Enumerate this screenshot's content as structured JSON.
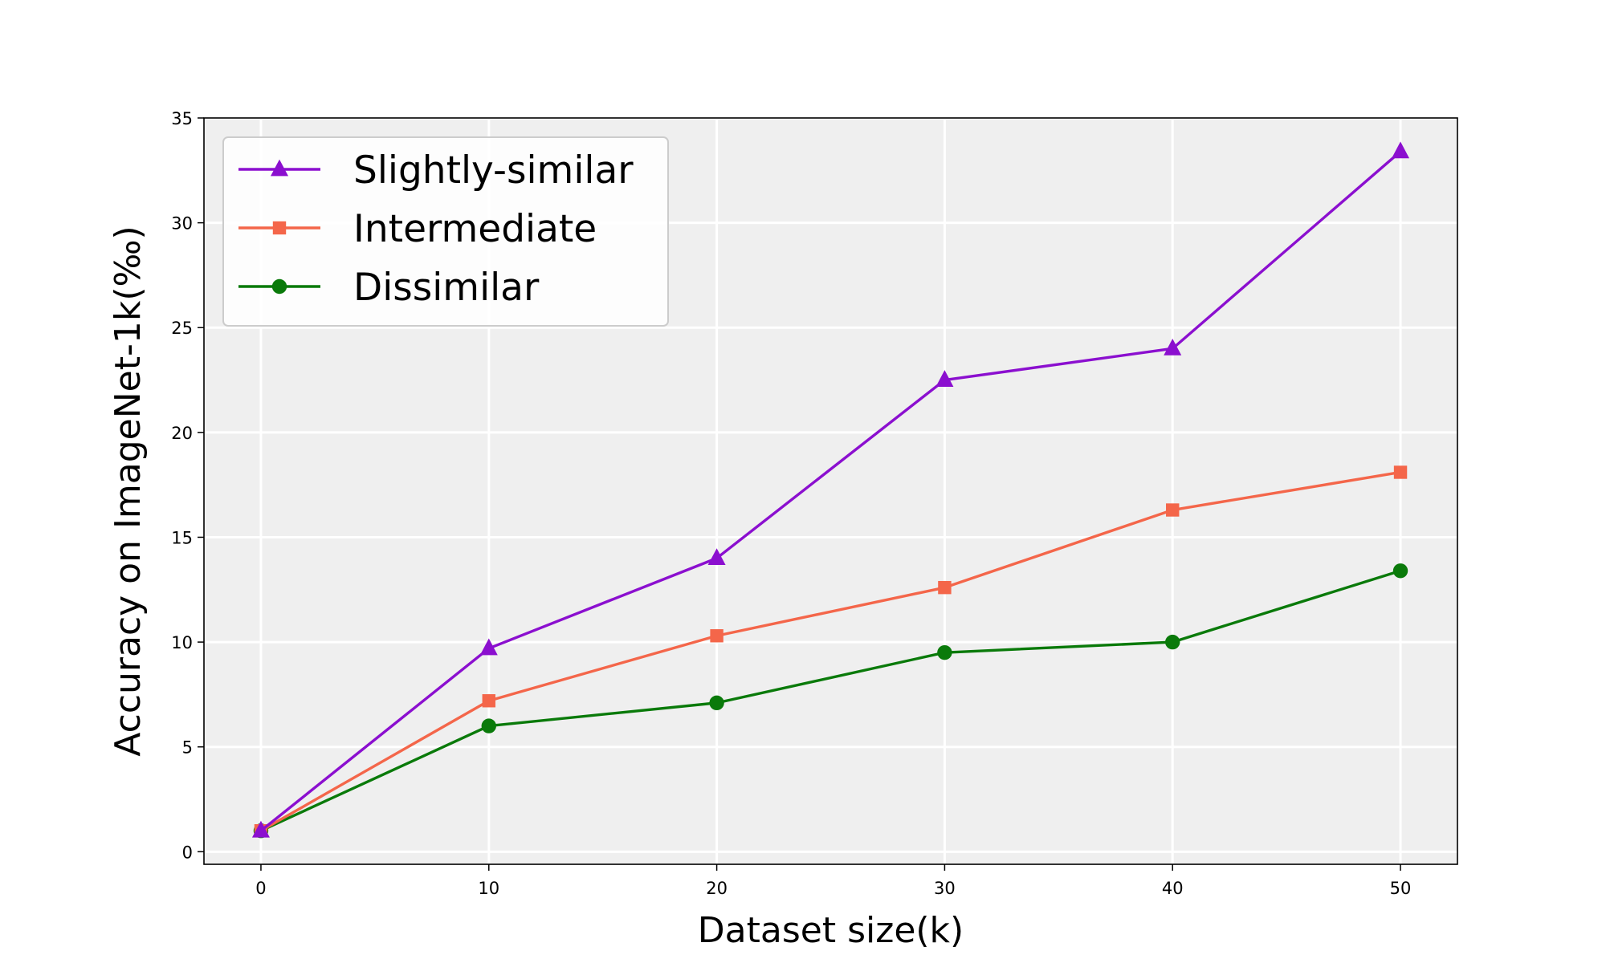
{
  "chart_data": {
    "type": "line",
    "title": "",
    "xlabel": "Dataset size(k)",
    "ylabel": "Accuracy on ImageNet-1k(‰)",
    "x": [
      0,
      10,
      20,
      30,
      40,
      50
    ],
    "xlim": [
      -2.5,
      52.5
    ],
    "ylim": [
      -0.6,
      35.0
    ],
    "xticks": [
      0,
      10,
      20,
      30,
      40,
      50
    ],
    "yticks": [
      0,
      5,
      10,
      15,
      20,
      25,
      30,
      35
    ],
    "grid": true,
    "legend_position": "top-left",
    "plot_background": "#efefef",
    "series": [
      {
        "name": "Slightly-similar",
        "color": "#8b0fcf",
        "marker": "triangle",
        "values": [
          1.0,
          9.7,
          14.0,
          22.5,
          24.0,
          33.4
        ]
      },
      {
        "name": "Intermediate",
        "color": "#f4664a",
        "marker": "square",
        "values": [
          1.0,
          7.2,
          10.3,
          12.6,
          16.3,
          18.1
        ]
      },
      {
        "name": "Dissimilar",
        "color": "#0a7a0a",
        "marker": "circle",
        "values": [
          1.0,
          6.0,
          7.1,
          9.5,
          10.0,
          13.4
        ]
      }
    ]
  }
}
